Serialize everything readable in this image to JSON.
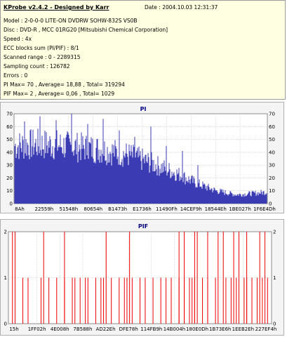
{
  "header": {
    "title": "KProbe v2.4.2 - Designed by Karr",
    "date": "Date : 2004.10.03 12:31:37",
    "lines": [
      "Model : 2-0-0-0 LITE-ON DVDRW SOHW-832S  VS0B",
      "Disc : DVD-R , MCC 01RG20   [Mitsubishi Chemical Corporation]",
      "Speed : 4x",
      "ECC blocks sum (PI/PIF) : 8/1",
      "Scanned range : 0 - 2289315",
      "Sampling count : 126782",
      "Errors : 0",
      "PI Max= 70 , Average= 18,88 , Total= 319294",
      "PIF Max= 2 , Average= 0,06 , Total= 1029"
    ]
  },
  "colors": {
    "pi_bar": "#3b3bb4",
    "pif_bar": "#ee0000",
    "title": "#000080"
  },
  "chart_data": [
    {
      "type": "bar",
      "title": "PI",
      "ylim": [
        0,
        70
      ],
      "yticks": [
        "0",
        "10",
        "20",
        "30",
        "40",
        "50",
        "60",
        "70"
      ],
      "xticks": [
        "8Ah",
        "22559h",
        "51548h",
        "80654h",
        "B1473h",
        "E1736h",
        "11490Fh",
        "14CEF9h",
        "18544Eh",
        "1BE027h",
        "1F6E4Dh"
      ],
      "grid": true,
      "profile_x": [
        0,
        0.05,
        0.15,
        0.25,
        0.35,
        0.45,
        0.55,
        0.65,
        0.72,
        0.8,
        0.88,
        0.95,
        1.0
      ],
      "profile_y": [
        45,
        46,
        46,
        44,
        42,
        38,
        31,
        23,
        16,
        10,
        7,
        8,
        9
      ],
      "peaks": [
        64,
        68,
        65,
        70,
        62,
        66,
        57,
        52,
        60,
        45,
        41,
        30
      ]
    },
    {
      "type": "bar",
      "title": "PIF",
      "ylim": [
        0,
        2
      ],
      "yticks": [
        "0",
        "1",
        "2"
      ],
      "xticks": [
        "15h",
        "1FF02h",
        "4E008h",
        "7B588h",
        "AD22Eh",
        "DFE78h",
        "114FB9h",
        "14B004h",
        "180E0Dh",
        "1B73E6h",
        "1EEB2Eh",
        "227EF4h"
      ],
      "grid": true,
      "ones": [
        0.05,
        0.07,
        0.12,
        0.15,
        0.18,
        0.21,
        0.24,
        0.25,
        0.27,
        0.29,
        0.3,
        0.33,
        0.35,
        0.36,
        0.39,
        0.42,
        0.44,
        0.45,
        0.47,
        0.5,
        0.52,
        0.55,
        0.58,
        0.6,
        0.62,
        0.65,
        0.67,
        0.69,
        0.7,
        0.71,
        0.74,
        0.76,
        0.79,
        0.83,
        0.85,
        0.87,
        0.9,
        0.91,
        0.93,
        0.95,
        0.97,
        0.99
      ],
      "twos": [
        0.01,
        0.02,
        0.13,
        0.21,
        0.37,
        0.46,
        0.65,
        0.67,
        0.71,
        0.72,
        0.76,
        0.8,
        0.82,
        0.86,
        0.88,
        0.91,
        0.96,
        0.98
      ]
    }
  ]
}
